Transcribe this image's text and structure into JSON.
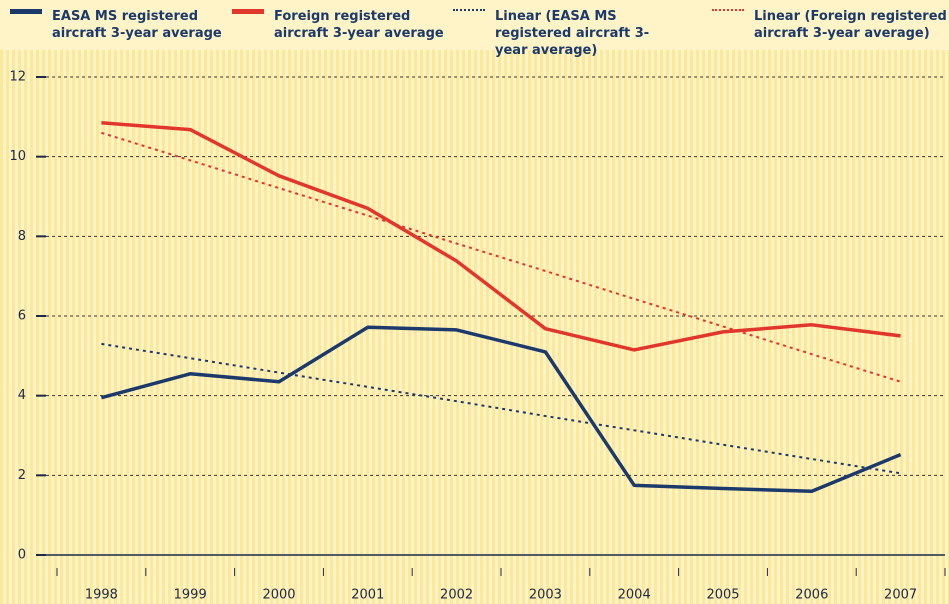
{
  "chart_data": {
    "type": "line",
    "categories": [
      "1998",
      "1999",
      "2000",
      "2001",
      "2002",
      "2003",
      "2004",
      "2005",
      "2006",
      "2007"
    ],
    "series": [
      {
        "name": "EASA MS registered aircraft 3-year average",
        "color": "#1b3a6b",
        "linestyle": "solid",
        "values": [
          3.95,
          4.55,
          4.35,
          5.72,
          5.65,
          5.1,
          1.75,
          1.67,
          1.6,
          2.52
        ]
      },
      {
        "name": "Foreign registered aircraft 3-year average",
        "color": "#e1362c",
        "linestyle": "solid",
        "values": [
          10.85,
          10.68,
          9.52,
          8.7,
          7.38,
          5.68,
          5.15,
          5.6,
          5.78,
          5.5
        ]
      },
      {
        "name": "Linear (EASA MS registered aircraft 3-year average)",
        "color": "#1b3a6b",
        "linestyle": "dotted",
        "values": [
          5.3,
          4.94,
          4.58,
          4.22,
          3.86,
          3.49,
          3.13,
          2.77,
          2.41,
          2.05
        ]
      },
      {
        "name": "Linear (Foreign registered aircraft 3-year average)",
        "color": "#e1362c",
        "linestyle": "dotted",
        "values": [
          10.6,
          9.91,
          9.21,
          8.52,
          7.82,
          7.13,
          6.43,
          5.74,
          5.04,
          4.35
        ]
      }
    ],
    "ylim": [
      0,
      12
    ],
    "yticks": [
      0,
      2,
      4,
      6,
      8,
      10,
      12
    ],
    "grid": true
  }
}
